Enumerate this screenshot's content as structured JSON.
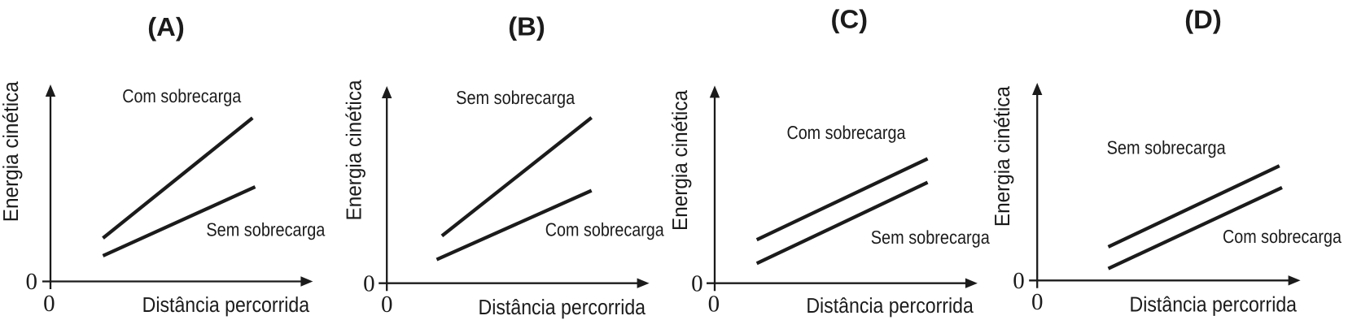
{
  "page": {
    "background_color": "#ffffff",
    "ink_color": "#1b1b1b"
  },
  "chart_data": [
    {
      "id": "A",
      "type": "line",
      "title": "(A)",
      "xlabel": "Distância percorrida",
      "ylabel": "Energia cinética",
      "x_origin_label": "0",
      "y_origin_label": "0",
      "xlim": [
        0,
        10
      ],
      "ylim": [
        0,
        10
      ],
      "grid": false,
      "legend_position": "inline-annotations",
      "series": [
        {
          "name": "Com sobrecarga",
          "x": [
            2.0,
            7.7
          ],
          "y": [
            2.2,
            8.3
          ],
          "label_x": 5.0,
          "label_y": 9.1
        },
        {
          "name": "Sem sobrecarga",
          "x": [
            2.0,
            7.8
          ],
          "y": [
            1.3,
            4.8
          ],
          "label_x": 8.2,
          "label_y": 2.3
        }
      ]
    },
    {
      "id": "B",
      "type": "line",
      "title": "(B)",
      "xlabel": "Distância percorrida",
      "ylabel": "Energia cinética",
      "x_origin_label": "0",
      "y_origin_label": "0",
      "xlim": [
        0,
        10
      ],
      "ylim": [
        0,
        10
      ],
      "grid": false,
      "legend_position": "inline-annotations",
      "series": [
        {
          "name": "Sem sobrecarga",
          "x": [
            2.1,
            7.8
          ],
          "y": [
            2.4,
            8.4
          ],
          "label_x": 4.9,
          "label_y": 9.1
        },
        {
          "name": "Com sobrecarga",
          "x": [
            1.9,
            7.8
          ],
          "y": [
            1.2,
            4.7
          ],
          "label_x": 8.3,
          "label_y": 2.4
        }
      ]
    },
    {
      "id": "C",
      "type": "line",
      "title": "(C)",
      "xlabel": "Distância percorrida",
      "ylabel": "Energia cinética",
      "x_origin_label": "0",
      "y_origin_label": "0",
      "xlim": [
        0,
        10
      ],
      "ylim": [
        0,
        10
      ],
      "grid": false,
      "legend_position": "inline-annotations",
      "series": [
        {
          "name": "Com sobrecarga",
          "x": [
            1.6,
            8.1
          ],
          "y": [
            2.2,
            6.3
          ],
          "label_x": 5.0,
          "label_y": 7.3
        },
        {
          "name": "Sem sobrecarga",
          "x": [
            1.6,
            8.1
          ],
          "y": [
            1.0,
            5.1
          ],
          "label_x": 8.2,
          "label_y": 2.0
        }
      ]
    },
    {
      "id": "D",
      "type": "line",
      "title": "(D)",
      "xlabel": "Distância percorrida",
      "ylabel": "Energia cinética",
      "x_origin_label": "0",
      "y_origin_label": "0",
      "xlim": [
        0,
        10
      ],
      "ylim": [
        0,
        10
      ],
      "grid": false,
      "legend_position": "inline-annotations",
      "series": [
        {
          "name": "Sem sobrecarga",
          "x": [
            2.7,
            9.2
          ],
          "y": [
            1.7,
            5.8
          ],
          "label_x": 4.9,
          "label_y": 6.4
        },
        {
          "name": "Com sobrecarga",
          "x": [
            2.7,
            9.3
          ],
          "y": [
            0.6,
            4.7
          ],
          "label_x": 9.3,
          "label_y": 1.9
        }
      ]
    }
  ]
}
